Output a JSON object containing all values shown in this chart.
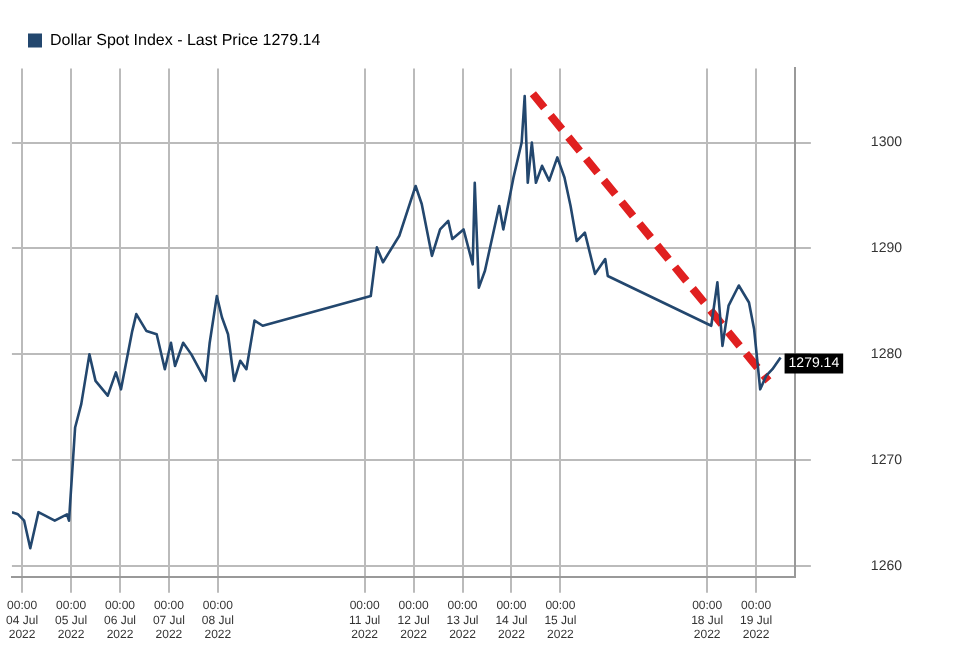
{
  "chart_data": {
    "type": "line",
    "legend": "top left",
    "grid": true,
    "marker": "none",
    "xlim": [
      "2022-07-03T19:00",
      "2022-07-19T19:00"
    ],
    "ylim": [
      1259,
      1307
    ],
    "xticks": [
      {
        "value": "2022-07-04T00:00",
        "label": "00:00 04 Jul 2022"
      },
      {
        "value": "2022-07-05T00:00",
        "label": "00:00 05 Jul 2022"
      },
      {
        "value": "2022-07-06T00:00",
        "label": "00:00 06 Jul 2022"
      },
      {
        "value": "2022-07-07T00:00",
        "label": "00:00 07 Jul 2022"
      },
      {
        "value": "2022-07-08T00:00",
        "label": "00:00 08 Jul 2022"
      },
      {
        "value": "2022-07-11T00:00",
        "label": "00:00 11 Jul 2022"
      },
      {
        "value": "2022-07-12T00:00",
        "label": "00:00 12 Jul 2022"
      },
      {
        "value": "2022-07-13T00:00",
        "label": "00:00 13 Jul 2022"
      },
      {
        "value": "2022-07-14T00:00",
        "label": "00:00 14 Jul 2022"
      },
      {
        "value": "2022-07-15T00:00",
        "label": "00:00 15 Jul 2022"
      },
      {
        "value": "2022-07-18T00:00",
        "label": "00:00 18 Jul 2022"
      },
      {
        "value": "2022-07-19T00:00",
        "label": "00:00 19 Jul 2022"
      }
    ],
    "yticks": [
      1260,
      1270,
      1280,
      1290,
      1300
    ],
    "annotations": [
      {
        "text": "1279.14",
        "x": "2022-07-19T12:00",
        "y": 1279.14
      }
    ],
    "series": [
      {
        "name": "Dollar Spot Index - Last Price 1279.14",
        "color": "#23476e",
        "line_style": "solid",
        "x": [
          "2022-07-03T19:00",
          "2022-07-03T22:00",
          "2022-07-04T01:00",
          "2022-07-04T04:00",
          "2022-07-04T08:00",
          "2022-07-04T16:00",
          "2022-07-04T22:00",
          "2022-07-04T23:00",
          "2022-07-05T02:00",
          "2022-07-05T05:00",
          "2022-07-05T09:00",
          "2022-07-05T12:00",
          "2022-07-05T18:00",
          "2022-07-05T22:00",
          "2022-07-06T00:30",
          "2022-07-06T06:00",
          "2022-07-06T08:00",
          "2022-07-06T13:00",
          "2022-07-06T18:00",
          "2022-07-06T22:00",
          "2022-07-07T01:00",
          "2022-07-07T03:00",
          "2022-07-07T07:00",
          "2022-07-07T11:00",
          "2022-07-07T18:00",
          "2022-07-07T20:00",
          "2022-07-07T23:30",
          "2022-07-08T02:00",
          "2022-07-08T05:00",
          "2022-07-08T08:00",
          "2022-07-08T11:00",
          "2022-07-08T14:00",
          "2022-07-08T18:00",
          "2022-07-08T22:00",
          "2022-07-11T03:00",
          "2022-07-11T06:00",
          "2022-07-11T09:00",
          "2022-07-11T17:00",
          "2022-07-12T01:00",
          "2022-07-12T04:00",
          "2022-07-12T09:00",
          "2022-07-12T13:00",
          "2022-07-12T17:00",
          "2022-07-12T19:00",
          "2022-07-13T00:30",
          "2022-07-13T05:00",
          "2022-07-13T06:00",
          "2022-07-13T08:00",
          "2022-07-13T11:00",
          "2022-07-13T18:00",
          "2022-07-13T20:00",
          "2022-07-14T01:00",
          "2022-07-14T05:00",
          "2022-07-14T06:30",
          "2022-07-14T08:00",
          "2022-07-14T10:00",
          "2022-07-14T12:00",
          "2022-07-14T15:00",
          "2022-07-14T18:30",
          "2022-07-14T22:30",
          "2022-07-15T02:00",
          "2022-07-15T05:00",
          "2022-07-15T08:00",
          "2022-07-15T12:00",
          "2022-07-15T17:00",
          "2022-07-15T22:00",
          "2022-07-15T23:15",
          "2022-07-18T02:00",
          "2022-07-18T05:00",
          "2022-07-18T07:30",
          "2022-07-18T10:30",
          "2022-07-18T15:30",
          "2022-07-18T20:30",
          "2022-07-18T23:00",
          "2022-07-19T02:00",
          "2022-07-19T05:00",
          "2022-07-19T08:00",
          "2022-07-19T12:00"
        ],
        "values": [
          1265.1,
          1264.9,
          1264.3,
          1261.7,
          1265.1,
          1264.3,
          1264.9,
          1264.3,
          1273.1,
          1275.3,
          1280.0,
          1277.5,
          1276.1,
          1278.3,
          1276.7,
          1282.2,
          1283.8,
          1282.2,
          1281.9,
          1278.6,
          1281.1,
          1278.9,
          1281.1,
          1280.0,
          1277.5,
          1281.1,
          1285.5,
          1283.5,
          1281.9,
          1277.5,
          1279.4,
          1278.6,
          1283.2,
          1282.7,
          1285.5,
          1290.1,
          1288.7,
          1291.2,
          1295.9,
          1294.2,
          1289.3,
          1291.8,
          1292.6,
          1290.9,
          1291.8,
          1288.5,
          1296.2,
          1286.3,
          1287.9,
          1294.0,
          1291.8,
          1296.7,
          1300.0,
          1304.4,
          1296.2,
          1300.0,
          1296.2,
          1297.8,
          1296.4,
          1298.6,
          1296.7,
          1294.0,
          1290.7,
          1291.5,
          1287.6,
          1289.0,
          1287.4,
          1282.7,
          1286.8,
          1280.8,
          1284.6,
          1286.5,
          1284.9,
          1282.4,
          1276.7,
          1278.0,
          1278.6,
          1279.7
        ]
      },
      {
        "type": "line",
        "color": "#e02020",
        "line_style": "dashed",
        "x": [
          "2022-07-14T10:30",
          "2022-07-19T06:00"
        ],
        "values": [
          1304.6,
          1277.5
        ]
      }
    ]
  }
}
